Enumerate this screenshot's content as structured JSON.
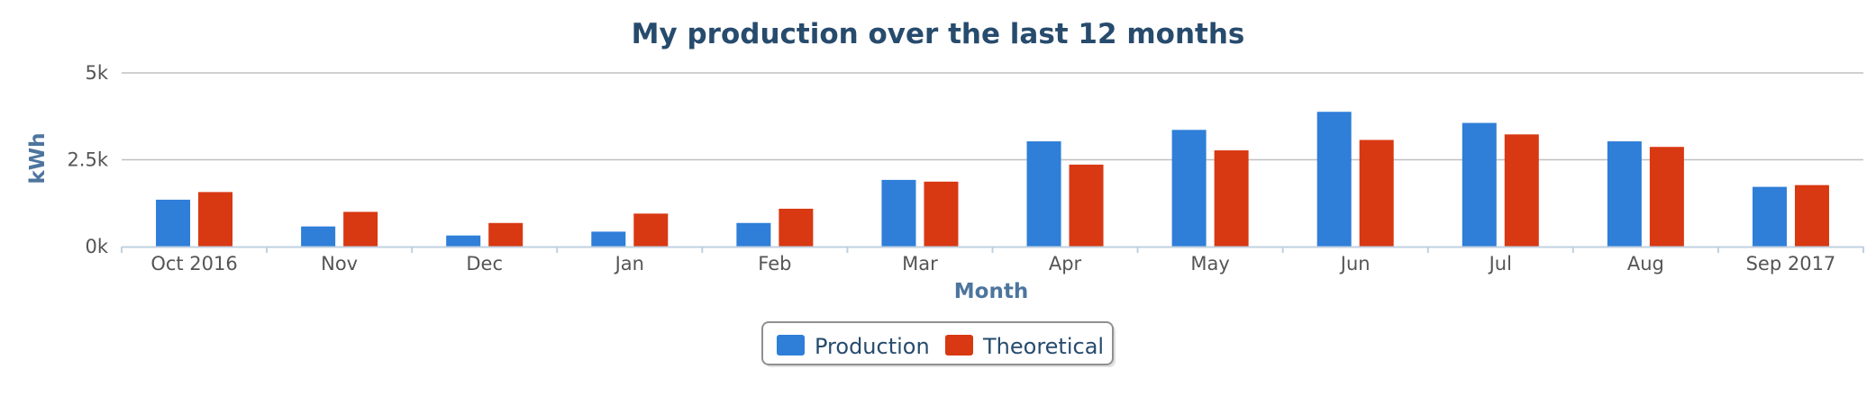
{
  "chart_data": {
    "type": "bar",
    "title": "My production over the last 12 months",
    "xlabel": "Month",
    "ylabel": "kWh",
    "ylim": [
      0,
      5000
    ],
    "yticks": [
      0,
      2500,
      5000
    ],
    "ytick_labels": [
      "0k",
      "2.5k",
      "5k"
    ],
    "categories": [
      "Oct 2016",
      "Nov",
      "Dec",
      "Jan",
      "Feb",
      "Mar",
      "Apr",
      "May",
      "Jun",
      "Jul",
      "Aug",
      "Sep 2017"
    ],
    "series": [
      {
        "name": "Production",
        "color": "#2f7ed8",
        "values": [
          1350,
          580,
          320,
          430,
          680,
          1920,
          3030,
          3360,
          3880,
          3560,
          3030,
          1720
        ]
      },
      {
        "name": "Theoretical",
        "color": "#d83812",
        "values": [
          1570,
          1000,
          680,
          950,
          1090,
          1870,
          2360,
          2770,
          3070,
          3230,
          2870,
          1770
        ]
      }
    ],
    "grid": true,
    "legend_position": "bottom-center"
  }
}
